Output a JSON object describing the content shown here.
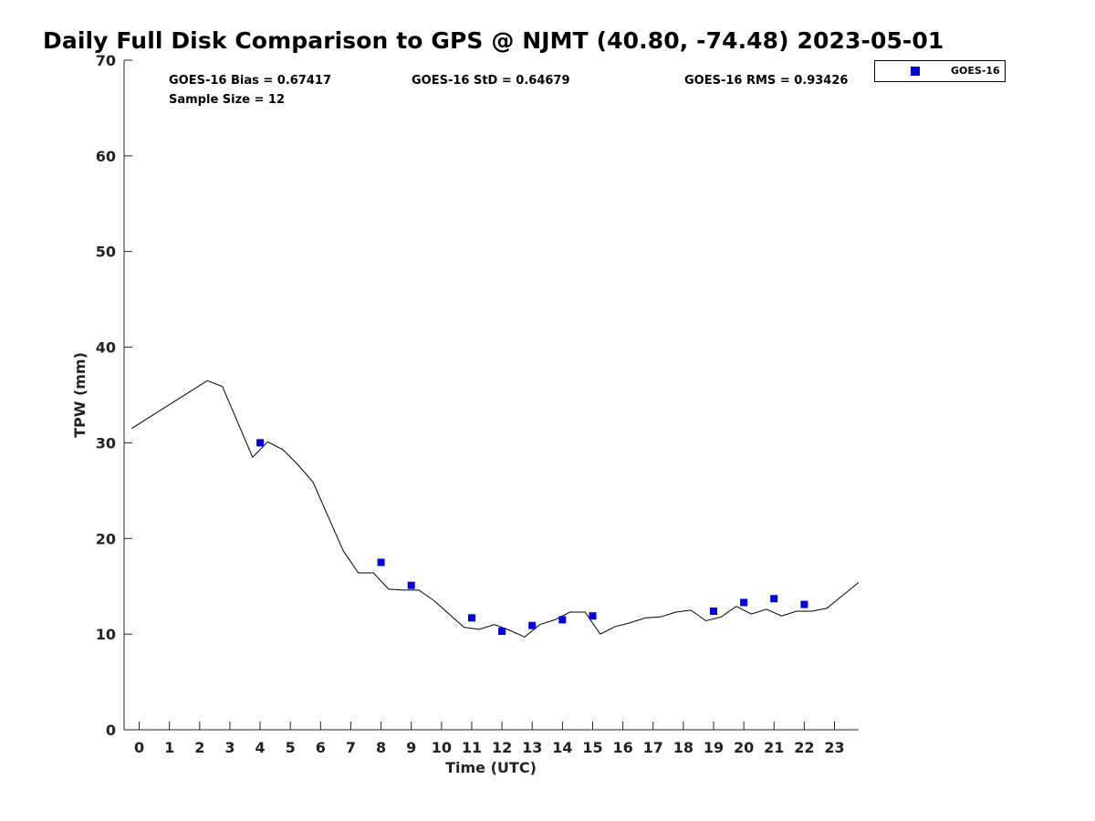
{
  "chart_data": {
    "type": "line",
    "title": "Daily Full Disk Comparison to GPS @ NJMT (40.80, -74.48) 2023-05-01",
    "xlabel": "Time (UTC)",
    "ylabel": "TPW (mm)",
    "xlim": [
      -0.5,
      23.8
    ],
    "ylim": [
      0,
      70
    ],
    "x_ticks": [
      0,
      1,
      2,
      3,
      4,
      5,
      6,
      7,
      8,
      9,
      10,
      11,
      12,
      13,
      14,
      15,
      16,
      17,
      18,
      19,
      20,
      21,
      22,
      23
    ],
    "y_ticks": [
      0,
      10,
      20,
      30,
      40,
      50,
      60,
      70
    ],
    "grid": false,
    "legend_position": "top-right (outside plot)",
    "stats": {
      "bias": "GOES-16 Bias = 0.67417",
      "std": "GOES-16 StD = 0.64679",
      "rms": "GOES-16 RMS = 0.93426",
      "sample": "Sample Size = 12"
    },
    "series": [
      {
        "kind": "line",
        "color": "#000000",
        "points": [
          [
            -0.25,
            31.5
          ],
          [
            2.25,
            36.5
          ],
          [
            2.75,
            35.9
          ],
          [
            3.75,
            28.5
          ],
          [
            4.25,
            30.1
          ],
          [
            4.75,
            29.3
          ],
          [
            5.25,
            27.7
          ],
          [
            5.75,
            25.9
          ],
          [
            6.25,
            22.3
          ],
          [
            6.75,
            18.7
          ],
          [
            7.25,
            16.4
          ],
          [
            7.75,
            16.4
          ],
          [
            8.25,
            14.7
          ],
          [
            8.75,
            14.6
          ],
          [
            9.25,
            14.6
          ],
          [
            9.75,
            13.5
          ],
          [
            10.25,
            12.1
          ],
          [
            10.75,
            10.7
          ],
          [
            11.25,
            10.5
          ],
          [
            11.75,
            11.0
          ],
          [
            12.25,
            10.4
          ],
          [
            12.75,
            9.7
          ],
          [
            13.25,
            11.0
          ],
          [
            13.75,
            11.5
          ],
          [
            14.25,
            12.3
          ],
          [
            14.75,
            12.3
          ],
          [
            15.25,
            10.0
          ],
          [
            15.75,
            10.8
          ],
          [
            16.25,
            11.2
          ],
          [
            16.75,
            11.7
          ],
          [
            17.25,
            11.8
          ],
          [
            17.75,
            12.3
          ],
          [
            18.25,
            12.5
          ],
          [
            18.75,
            11.4
          ],
          [
            19.25,
            11.8
          ],
          [
            19.75,
            12.9
          ],
          [
            20.25,
            12.1
          ],
          [
            20.75,
            12.6
          ],
          [
            21.25,
            11.9
          ],
          [
            21.75,
            12.4
          ],
          [
            22.25,
            12.4
          ],
          [
            22.75,
            12.7
          ],
          [
            23.25,
            14.0
          ],
          [
            23.8,
            15.4
          ]
        ]
      },
      {
        "kind": "scatter",
        "name": "GOES-16",
        "color": "#0000dd",
        "points": [
          [
            4,
            30.0
          ],
          [
            8,
            17.5
          ],
          [
            9,
            15.1
          ],
          [
            11,
            11.7
          ],
          [
            12,
            10.3
          ],
          [
            13,
            10.9
          ],
          [
            14,
            11.5
          ],
          [
            15,
            11.9
          ],
          [
            19,
            12.4
          ],
          [
            20,
            13.3
          ],
          [
            21,
            13.7
          ],
          [
            22,
            13.1
          ]
        ]
      }
    ]
  }
}
